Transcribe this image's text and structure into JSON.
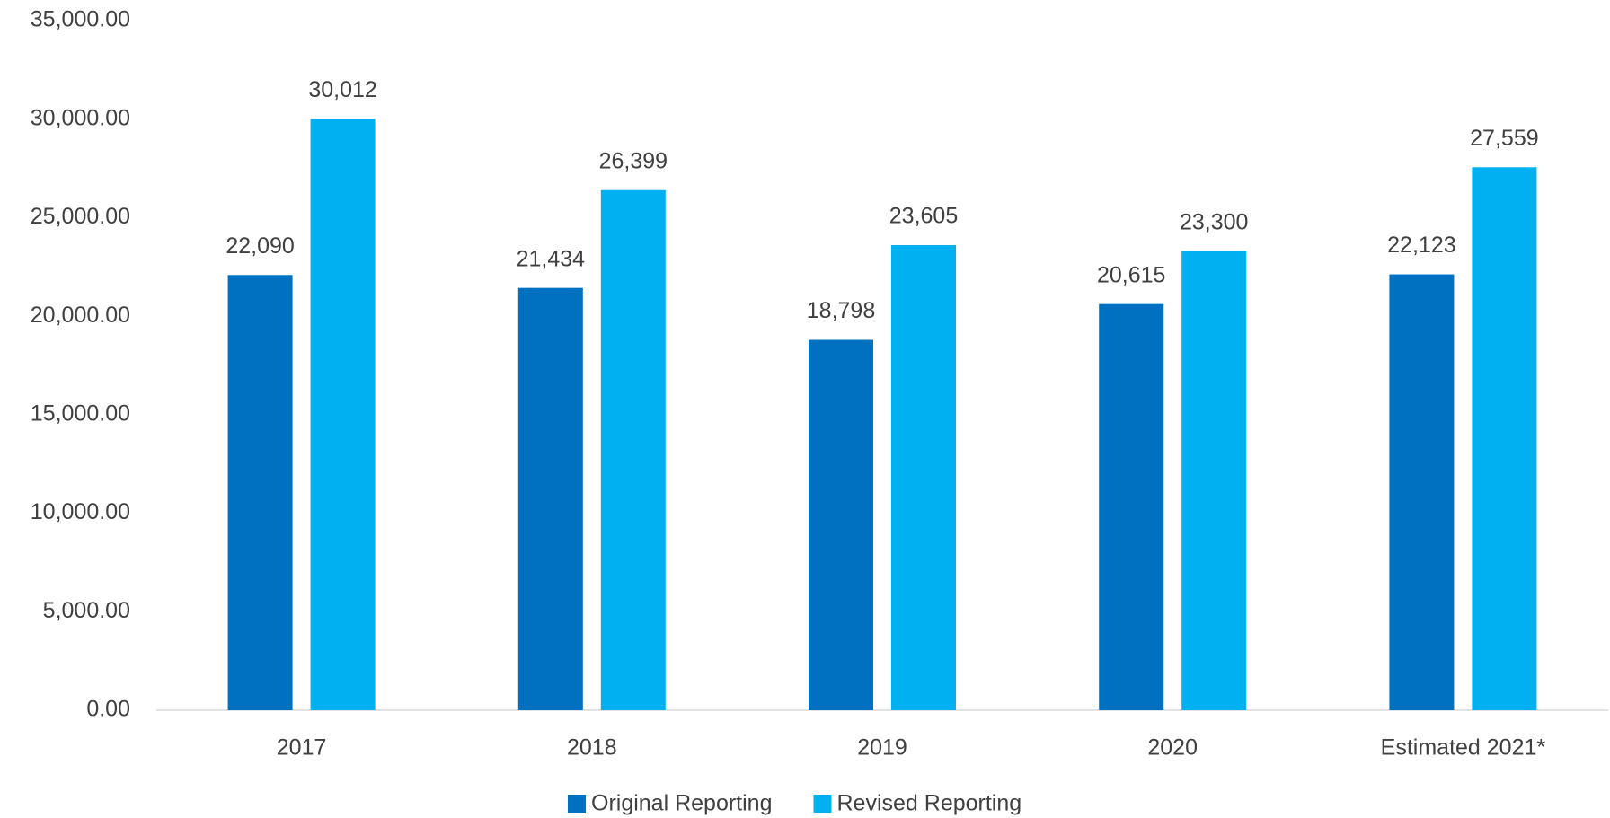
{
  "chart_data": {
    "type": "bar",
    "categories": [
      "2017",
      "2018",
      "2019",
      "2020",
      "Estimated 2021*"
    ],
    "series": [
      {
        "name": "Original Reporting",
        "color": "#0070c0",
        "values": [
          22090,
          21434,
          18798,
          20615,
          22123
        ],
        "value_labels": [
          "22,090",
          "21,434",
          "18,798",
          "20,615",
          "22,123"
        ]
      },
      {
        "name": "Revised Reporting",
        "color": "#00b0f0",
        "values": [
          30012,
          26399,
          23605,
          23300,
          27559
        ],
        "value_labels": [
          "30,012",
          "26,399",
          "23,605",
          "23,300",
          "27,559"
        ]
      }
    ],
    "ylim": [
      0,
      35000
    ],
    "yticks": [
      {
        "value": 0,
        "label": "0.00"
      },
      {
        "value": 5000,
        "label": "5,000.00"
      },
      {
        "value": 10000,
        "label": "10,000.00"
      },
      {
        "value": 15000,
        "label": "15,000.00"
      },
      {
        "value": 20000,
        "label": "20,000.00"
      },
      {
        "value": 25000,
        "label": "25,000.00"
      },
      {
        "value": 30000,
        "label": "30,000.00"
      },
      {
        "value": 35000,
        "label": "35,000.00"
      }
    ],
    "grid": false,
    "legend": "bottom"
  }
}
